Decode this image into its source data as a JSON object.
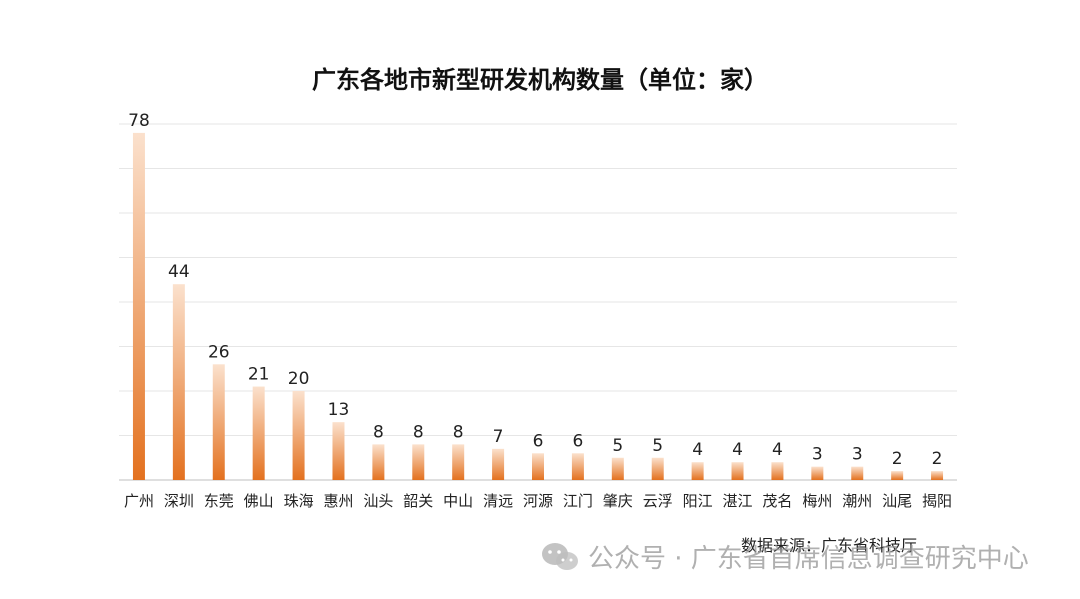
{
  "chart_data": {
    "type": "bar",
    "title": "广东各地市新型研发机构数量（单位：家）",
    "categories": [
      "广州",
      "深圳",
      "东莞",
      "佛山",
      "珠海",
      "惠州",
      "汕头",
      "韶关",
      "中山",
      "清远",
      "河源",
      "江门",
      "肇庆",
      "云浮",
      "阳江",
      "湛江",
      "茂名",
      "梅州",
      "潮州",
      "汕尾",
      "揭阳"
    ],
    "values": [
      78,
      44,
      26,
      21,
      20,
      13,
      8,
      8,
      8,
      7,
      6,
      6,
      5,
      5,
      4,
      4,
      4,
      3,
      3,
      2,
      2
    ],
    "data_labels": [
      "78",
      "44",
      "26",
      "21",
      "20",
      "13",
      "8",
      "8",
      "8",
      "7",
      "6",
      "6",
      "5",
      "5",
      "4",
      "4",
      "4",
      "3",
      "3",
      "2",
      "2"
    ],
    "ylim": [
      0,
      80
    ],
    "grid": true,
    "colors": {
      "bar_top": "#fbe1cd",
      "bar_bottom": "#e3711f",
      "grid": "#e6e6e6",
      "axis": "#bfbfbf"
    }
  },
  "source_text": "数据来源：广东省科技厅",
  "watermark": {
    "icon": "wechat-icon",
    "text": "公众号 · 广东省首席信息调查研究中心"
  }
}
